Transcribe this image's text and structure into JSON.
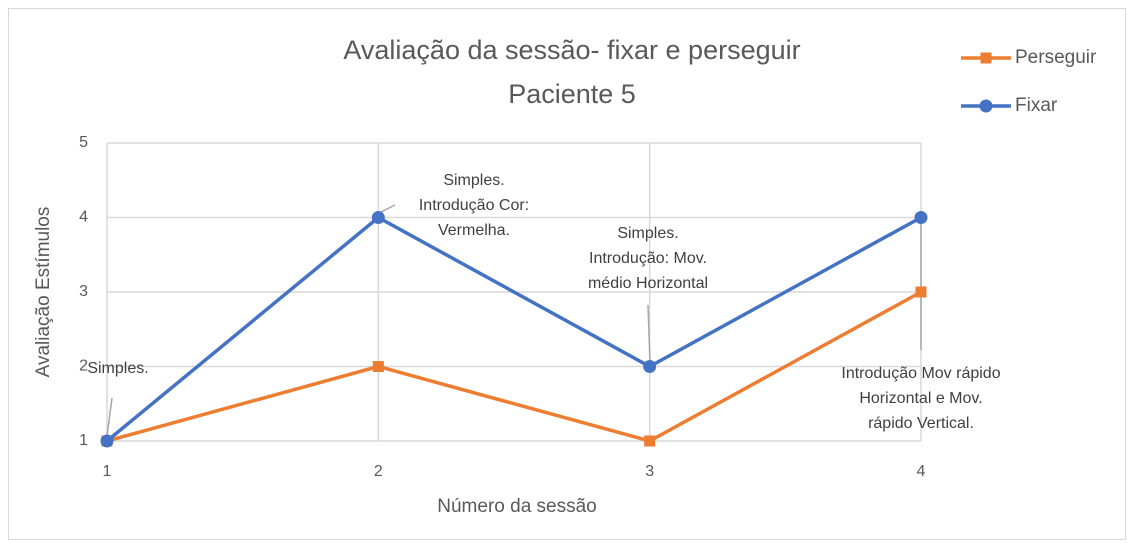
{
  "chart_data": {
    "type": "line",
    "title": [
      "Avaliação da sessão- fixar e perseguir",
      "Paciente 5"
    ],
    "x_label": "Número da sessão",
    "y_label": "Avaliação Estímulos",
    "x": [
      1,
      2,
      3,
      4
    ],
    "series": [
      {
        "name": "Perseguir",
        "color": "#ed7d31",
        "marker": "square",
        "values": [
          1,
          2,
          1,
          3
        ]
      },
      {
        "name": "Fixar",
        "color": "#4472c4",
        "marker": "circle",
        "values": [
          1,
          4,
          2,
          4
        ]
      }
    ],
    "xlim": [
      1,
      4
    ],
    "xticks": [
      1,
      2,
      3,
      4
    ],
    "ylim": [
      1,
      5
    ],
    "yticks": [
      1,
      2,
      3,
      4,
      5
    ],
    "grid": true,
    "legend": "top-right",
    "annotations": [
      [
        "Simples."
      ],
      [
        "Simples.",
        "Introdução Cor:",
        "Vermelha."
      ],
      [
        "Simples.",
        "Introdução: Mov.",
        "médio Horizontal"
      ],
      [
        "Introdução Mov rápido",
        "Horizontal e Mov.",
        "rápido Vertical."
      ]
    ]
  }
}
